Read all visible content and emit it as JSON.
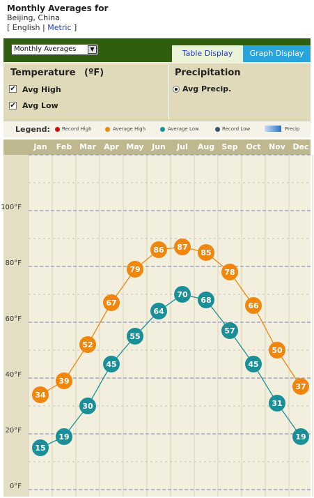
{
  "header": {
    "title": "Monthly Averages for",
    "location": "Beijing, China",
    "bracket_open": "[",
    "bracket_close": "]",
    "link_sep": "|",
    "link_english": "English",
    "link_metric": "Metric"
  },
  "toolbar": {
    "select_value": "Monthly Averages",
    "tab_table": "Table Display",
    "tab_graph": "Graph Display"
  },
  "options": {
    "temperature_title": "Temperature",
    "temperature_unit": "(ºF)",
    "avg_high_label": "Avg High",
    "avg_low_label": "Avg Low",
    "avg_high_checked": true,
    "avg_low_checked": true,
    "precipitation_title": "Precipitation",
    "avg_precip_label": "Avg Precip.",
    "avg_precip_selected": true
  },
  "legend": {
    "label": "Legend:",
    "record_high": "Record High",
    "average_high": "Average High",
    "average_low": "Average Low",
    "record_low": "Record Low",
    "precip": "Precip"
  },
  "colors": {
    "record_high": "#cc1111",
    "average_high": "#f0860c",
    "average_low": "#1a8f98",
    "record_low": "#3b5170",
    "precip": "#2a6fc0",
    "plot_bg": "#f2efdf",
    "grid_line": "#8d98b5"
  },
  "chart_data": {
    "type": "line",
    "categories": [
      "Jan",
      "Feb",
      "Mar",
      "Apr",
      "May",
      "Jun",
      "Jul",
      "Aug",
      "Sep",
      "Oct",
      "Nov",
      "Dec"
    ],
    "series": [
      {
        "name": "Average High",
        "values": [
          34,
          39,
          52,
          67,
          79,
          86,
          87,
          85,
          78,
          66,
          50,
          37
        ]
      },
      {
        "name": "Average Low",
        "values": [
          15,
          19,
          30,
          45,
          55,
          64,
          70,
          68,
          57,
          45,
          31,
          19
        ]
      }
    ],
    "yticks": [
      "0°F",
      "20°F",
      "40°F",
      "60°F",
      "80°F",
      "100°F"
    ],
    "ylim": [
      0,
      120
    ],
    "grid": true
  }
}
